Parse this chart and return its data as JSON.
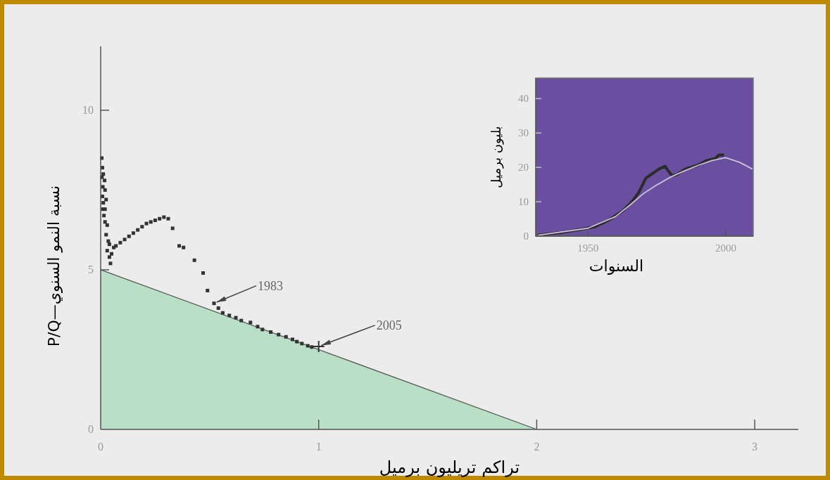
{
  "chart_data": [
    {
      "type": "scatter",
      "xlabel": "تراكم تريليون برميل",
      "ylabel": "P/Q—نسبة النمو السنوي",
      "xlim": [
        0,
        3.2
      ],
      "ylim": [
        0,
        12
      ],
      "xticks": [
        0,
        1,
        2,
        3
      ],
      "yticks": [
        0,
        5,
        10
      ],
      "series": [
        {
          "type": "area",
          "color": "#b9dfc7",
          "x": [
            0,
            2
          ],
          "values": [
            5,
            0
          ]
        },
        {
          "type": "scatter",
          "color": "#333333",
          "marker": "square",
          "x": [
            0.005,
            0.008,
            0.006,
            0.01,
            0.008,
            0.012,
            0.01,
            0.015,
            0.02,
            0.012,
            0.018,
            0.02,
            0.025,
            0.02,
            0.03,
            0.025,
            0.035,
            0.03,
            0.04,
            0.045,
            0.05,
            0.04,
            0.06,
            0.07,
            0.09,
            0.11,
            0.13,
            0.15,
            0.17,
            0.19,
            0.21,
            0.23,
            0.25,
            0.27,
            0.29,
            0.31,
            0.33,
            0.36,
            0.38,
            0.43,
            0.47,
            0.49,
            0.52,
            0.54,
            0.56,
            0.59,
            0.62,
            0.645,
            0.687,
            0.72,
            0.742,
            0.78,
            0.816,
            0.85,
            0.88,
            0.9,
            0.923,
            0.95,
            0.968
          ],
          "values": [
            8.5,
            8.2,
            7.9,
            7.6,
            7.3,
            7.1,
            6.9,
            6.7,
            6.5,
            8.0,
            7.8,
            7.5,
            7.2,
            6.9,
            6.4,
            6.1,
            5.9,
            5.6,
            5.4,
            5.2,
            5.5,
            5.8,
            5.7,
            5.75,
            5.85,
            5.95,
            6.05,
            6.15,
            6.25,
            6.35,
            6.45,
            6.5,
            6.55,
            6.6,
            6.65,
            6.6,
            6.3,
            5.75,
            5.7,
            5.3,
            4.9,
            4.35,
            3.95,
            3.8,
            3.65,
            3.57,
            3.5,
            3.41,
            3.35,
            3.22,
            3.13,
            3.05,
            2.97,
            2.9,
            2.82,
            2.75,
            2.69,
            2.62,
            2.58
          ]
        },
        {
          "type": "scatter",
          "color": "#333333",
          "marker": "cross",
          "x": [
            1.0
          ],
          "values": [
            2.6
          ]
        }
      ],
      "annotations": [
        {
          "text": "1983",
          "x": 0.52,
          "y": 3.95
        },
        {
          "text": "2005",
          "x": 1.0,
          "y": 2.6
        }
      ]
    },
    {
      "type": "line",
      "xlabel": "السنوات",
      "ylabel": "بليون برميل",
      "xlim": [
        1931,
        2010
      ],
      "ylim": [
        0,
        46
      ],
      "xticks": [
        1950,
        2000
      ],
      "yticks": [
        0,
        10,
        20,
        30,
        40
      ],
      "series": [
        {
          "color": "#2b2b2b",
          "x": [
            1932,
            1940,
            1947.5,
            1952.5,
            1957.6,
            1962.7,
            1966,
            1968.5,
            1971,
            1973.4,
            1975.9,
            1978,
            1979.2,
            1980.5,
            1982.2,
            1985.5,
            1989.8,
            1993.1,
            1996.2,
            1997.5,
            1999
          ],
          "values": [
            0.3,
            1.0,
            2.0,
            2.7,
            4.7,
            7.4,
            10.1,
            12.8,
            16.9,
            18.2,
            19.6,
            20.3,
            18.9,
            17.6,
            17.9,
            19.6,
            20.6,
            22.0,
            22.6,
            23.6,
            23.6
          ]
        },
        {
          "color": "#c9c2d6",
          "x": [
            1932,
            1950,
            1960,
            1965,
            1970,
            1975,
            1980,
            1985,
            1990,
            1995,
            2000,
            2005,
            2009.5
          ],
          "values": [
            0.3,
            2.3,
            5.7,
            8.9,
            12.3,
            14.9,
            17.2,
            19.0,
            20.6,
            22.0,
            22.8,
            21.5,
            19.6
          ]
        }
      ]
    }
  ]
}
